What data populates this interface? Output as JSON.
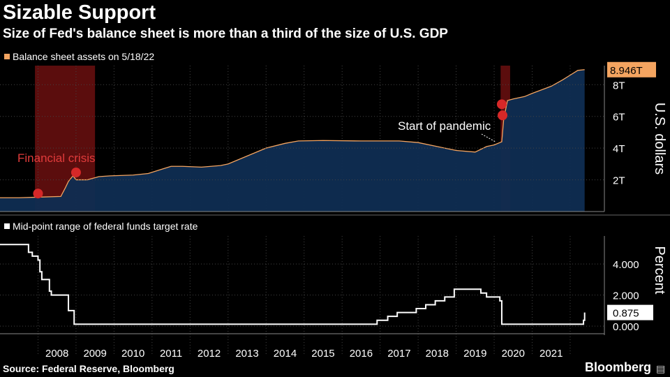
{
  "header": {
    "title": "Sizable Support",
    "subtitle": "Size of Fed's balance sheet is more than a third of the size of U.S. GDP"
  },
  "footer": {
    "source": "Source: Federal Reserve, Bloomberg",
    "brand": "Bloomberg"
  },
  "chart_data": [
    {
      "type": "area",
      "legend": "Balance sheet assets on 5/18/22",
      "ylabel": "U.S. dollars",
      "color": "#f4a460",
      "fill": "#0f2d52",
      "ylim": [
        0,
        9.2
      ],
      "yticks": [
        "2T",
        "4T",
        "6T",
        "8T"
      ],
      "last_value_label": "8.946T",
      "recession_shading": [
        [
          2007.92,
          2009.5
        ],
        [
          2020.17,
          2020.42
        ]
      ],
      "recession_color": "#7a1212",
      "annotations": [
        "Financial crisis",
        "Start of pandemic"
      ],
      "x": [
        2007.0,
        2007.5,
        2007.9,
        2008.6,
        2008.72,
        2008.8,
        2008.92,
        2009.0,
        2009.3,
        2009.6,
        2009.9,
        2010.5,
        2010.9,
        2011.3,
        2011.5,
        2011.8,
        2012.3,
        2012.8,
        2013.0,
        2013.5,
        2014.0,
        2014.5,
        2014.85,
        2015.5,
        2016.5,
        2017.5,
        2018.0,
        2018.5,
        2019.0,
        2019.5,
        2019.8,
        2020.0,
        2020.2,
        2020.25,
        2020.35,
        2020.5,
        2020.8,
        2021.0,
        2021.5,
        2021.8,
        2022.0,
        2022.2,
        2022.38
      ],
      "values": [
        0.87,
        0.87,
        0.9,
        0.95,
        1.5,
        1.9,
        2.25,
        2.0,
        2.0,
        2.2,
        2.25,
        2.3,
        2.4,
        2.7,
        2.85,
        2.85,
        2.8,
        2.9,
        3.0,
        3.5,
        4.0,
        4.3,
        4.45,
        4.48,
        4.45,
        4.45,
        4.35,
        4.1,
        3.85,
        3.75,
        4.1,
        4.2,
        4.4,
        5.8,
        7.0,
        7.1,
        7.25,
        7.45,
        7.9,
        8.3,
        8.6,
        8.9,
        8.946
      ]
    },
    {
      "type": "line",
      "legend": "Mid-point range of federal funds target rate",
      "ylabel": "Percent",
      "color": "#ffffff",
      "ylim": [
        -0.4,
        5.8
      ],
      "yticks": [
        "0.000",
        "2.000",
        "4.000"
      ],
      "ytick_values": [
        0,
        2,
        4
      ],
      "last_value_label": "0.875",
      "x": [
        2007.0,
        2007.63,
        2007.75,
        2007.85,
        2008.0,
        2008.05,
        2008.1,
        2008.3,
        2008.35,
        2008.65,
        2008.8,
        2008.95,
        2015.92,
        2016.92,
        2017.2,
        2017.45,
        2017.95,
        2018.2,
        2018.45,
        2018.7,
        2018.95,
        2019.55,
        2019.65,
        2019.8,
        2020.15,
        2020.2,
        2022.2,
        2022.35,
        2022.38
      ],
      "values": [
        5.25,
        5.25,
        4.75,
        4.5,
        4.25,
        3.5,
        3.0,
        2.25,
        2.0,
        2.0,
        1.0,
        0.125,
        0.125,
        0.375,
        0.625,
        0.875,
        1.125,
        1.375,
        1.625,
        1.875,
        2.375,
        2.375,
        2.125,
        1.875,
        1.625,
        0.125,
        0.125,
        0.375,
        0.875
      ]
    }
  ],
  "x_axis": {
    "labels": [
      "2008",
      "2009",
      "2010",
      "2011",
      "2012",
      "2013",
      "2014",
      "2015",
      "2016",
      "2017",
      "2018",
      "2019",
      "2020",
      "2021"
    ],
    "range": [
      2007.0,
      2022.9
    ]
  }
}
